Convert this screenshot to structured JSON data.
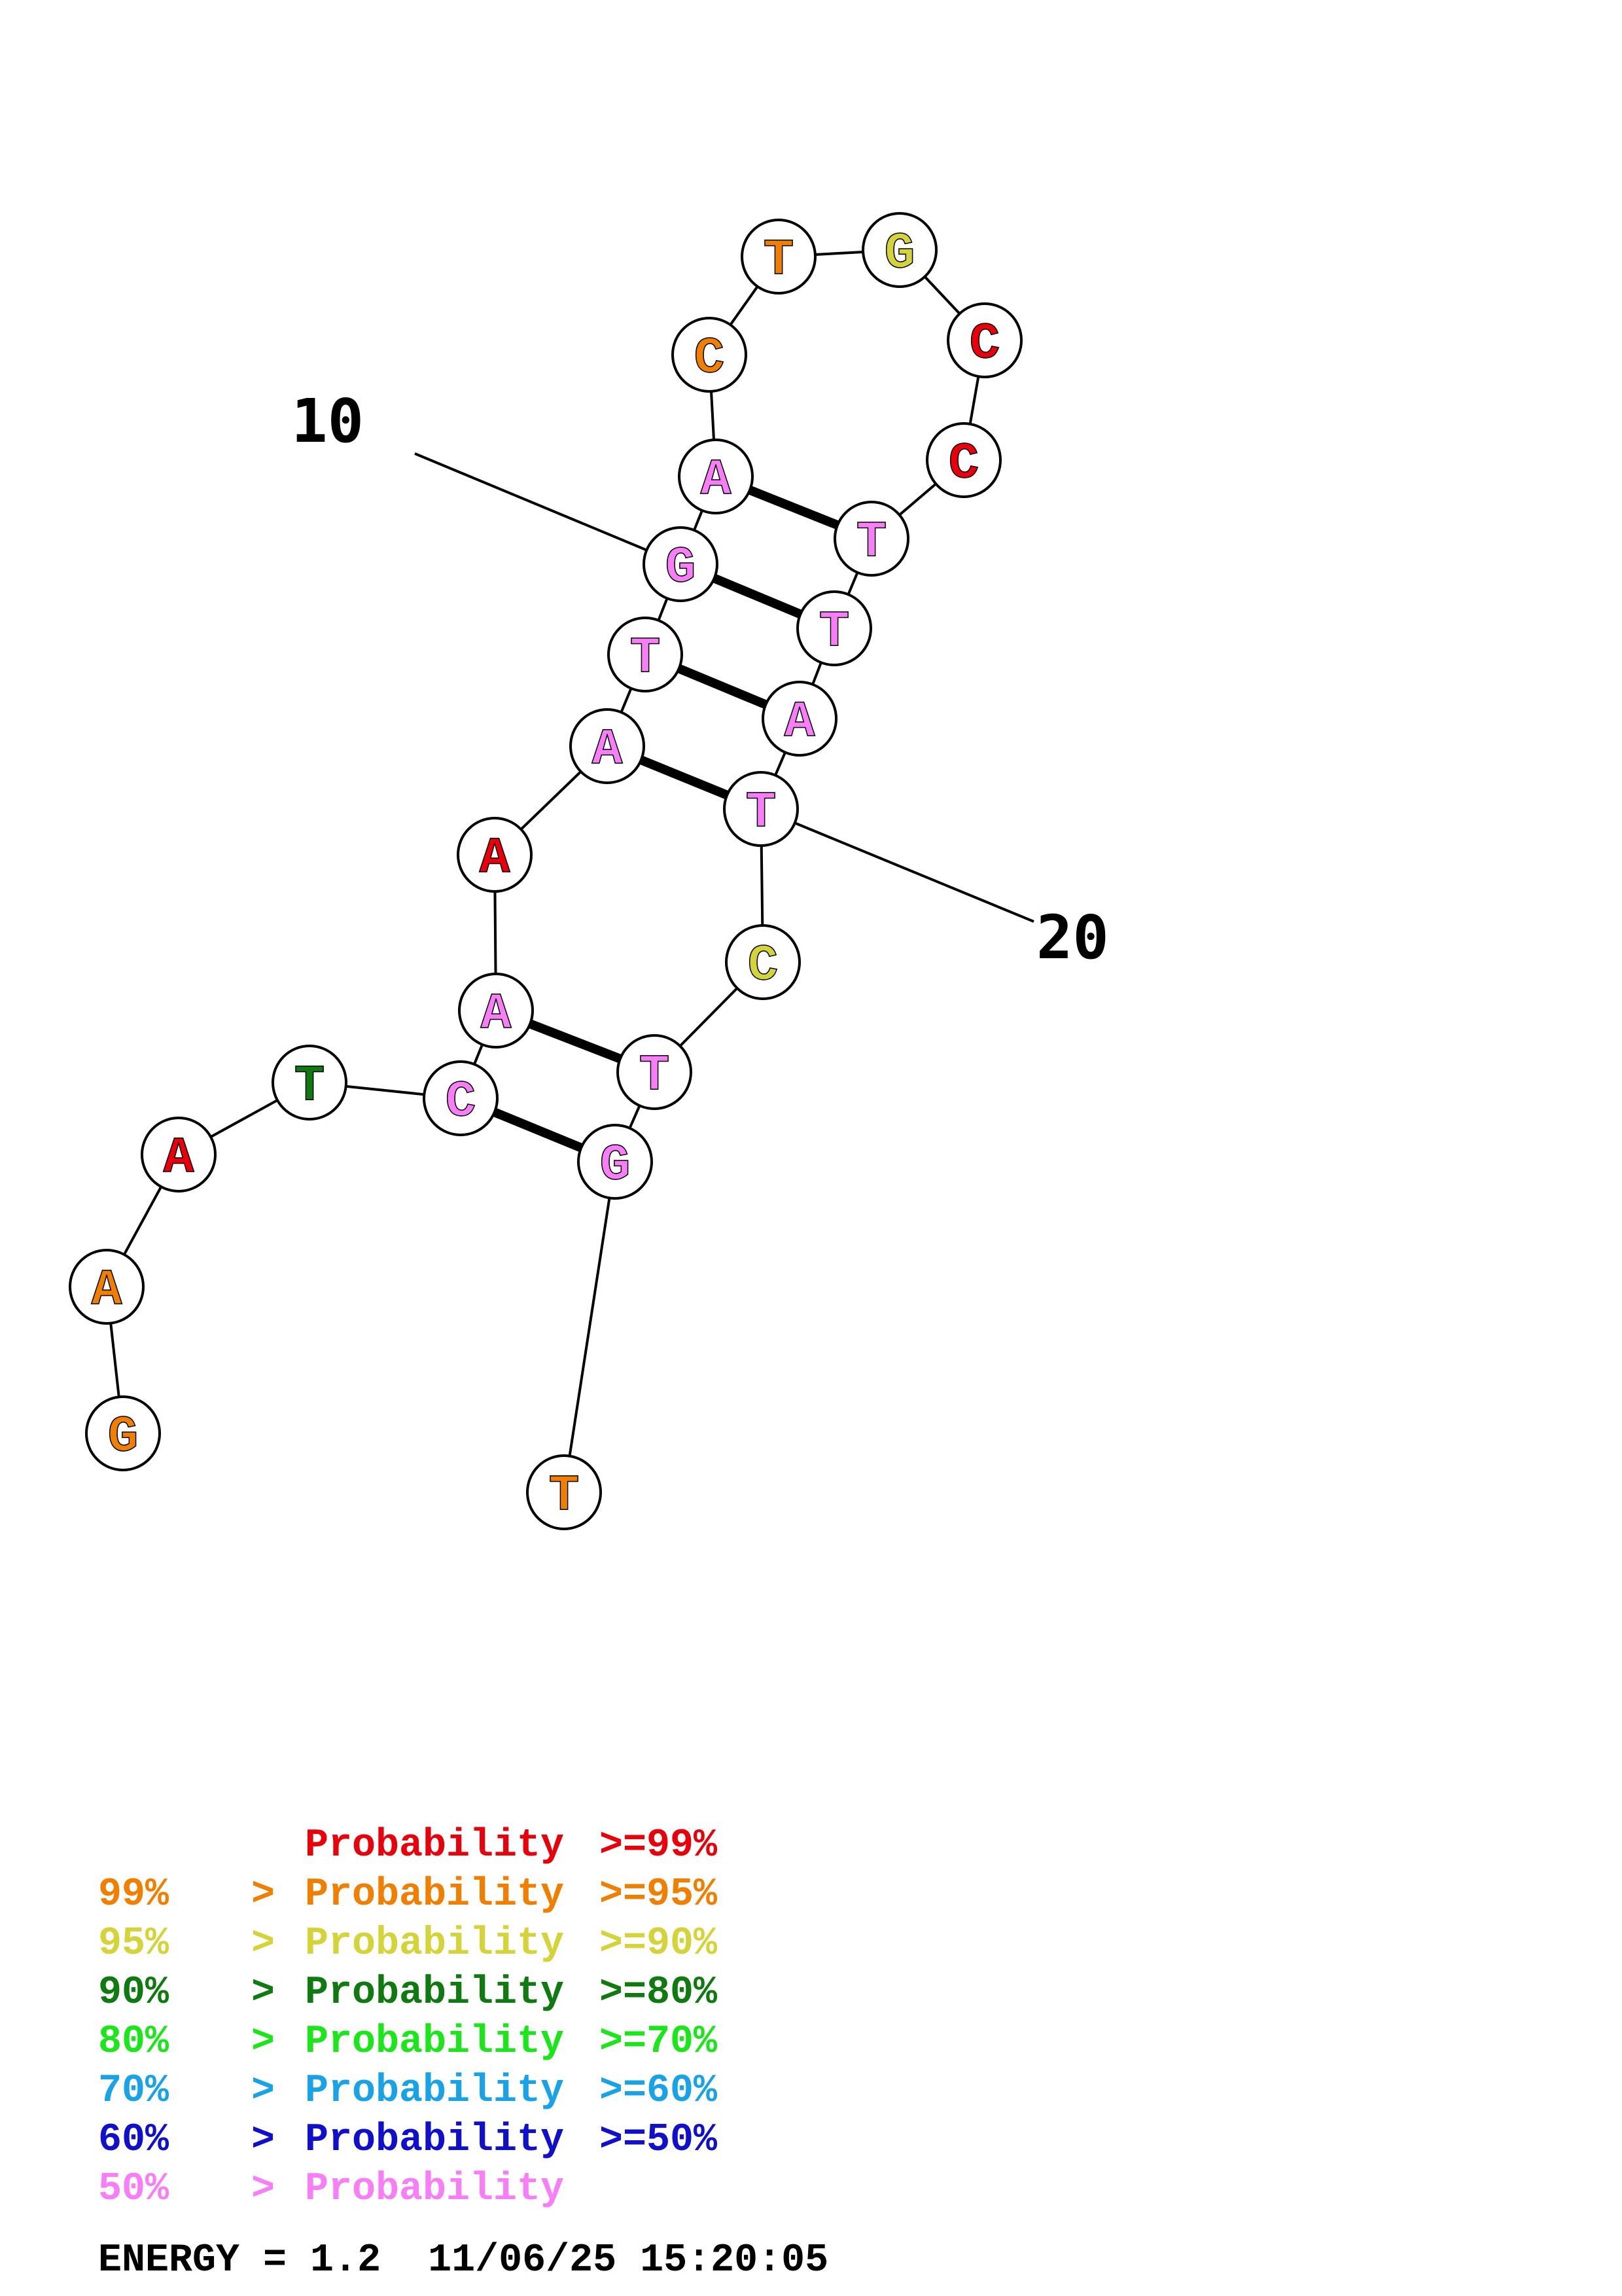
{
  "structure": {
    "nucleotides": [
      {
        "base": "G",
        "prob": "95-99"
      },
      {
        "base": "A",
        "prob": "95-99"
      },
      {
        "base": "A",
        "prob": ">=99"
      },
      {
        "base": "T",
        "prob": "80-90"
      },
      {
        "base": "C",
        "prob": "<50"
      },
      {
        "base": "A",
        "prob": "<50"
      },
      {
        "base": "A",
        "prob": ">=99"
      },
      {
        "base": "A",
        "prob": "<50"
      },
      {
        "base": "T",
        "prob": "<50"
      },
      {
        "base": "G",
        "prob": "<50"
      },
      {
        "base": "A",
        "prob": "<50"
      },
      {
        "base": "C",
        "prob": "95-99"
      },
      {
        "base": "T",
        "prob": "95-99"
      },
      {
        "base": "G",
        "prob": "90-95"
      },
      {
        "base": "C",
        "prob": ">=99"
      },
      {
        "base": "C",
        "prob": ">=99"
      },
      {
        "base": "T",
        "prob": "<50"
      },
      {
        "base": "T",
        "prob": "<50"
      },
      {
        "base": "A",
        "prob": "<50"
      },
      {
        "base": "T",
        "prob": "<50"
      },
      {
        "base": "C",
        "prob": "90-95"
      },
      {
        "base": "T",
        "prob": "<50"
      },
      {
        "base": "G",
        "prob": "<50"
      },
      {
        "base": "T",
        "prob": "95-99"
      }
    ],
    "pairs": [
      [
        5,
        23
      ],
      [
        6,
        22
      ],
      [
        8,
        20
      ],
      [
        9,
        19
      ],
      [
        10,
        18
      ],
      [
        11,
        17
      ]
    ],
    "index_labels": [
      {
        "text": "10",
        "position": 10
      },
      {
        "text": "20",
        "position": 20
      }
    ]
  },
  "colors": {
    ">=99": "#e8000b",
    "95-99": "#f07f00",
    "90-95": "#d4d43a",
    "80-90": "#0f7a0f",
    "70-80": "#1ae61a",
    "60-70": "#19a3e6",
    "50-60": "#1010cc",
    "<50": "#f77ef7"
  },
  "legend": [
    {
      "prefix": "",
      "gt": "",
      "label": "Probability",
      "op": ">=",
      "value": "99%",
      "color": "#e8000b"
    },
    {
      "prefix": "99%",
      "gt": ">",
      "label": "Probability",
      "op": ">=",
      "value": "95%",
      "color": "#f07f00"
    },
    {
      "prefix": "95%",
      "gt": ">",
      "label": "Probability",
      "op": ">=",
      "value": "90%",
      "color": "#d4d43a"
    },
    {
      "prefix": "90%",
      "gt": ">",
      "label": "Probability",
      "op": ">=",
      "value": "80%",
      "color": "#0f7a0f"
    },
    {
      "prefix": "80%",
      "gt": ">",
      "label": "Probability",
      "op": ">=",
      "value": "70%",
      "color": "#1ae61a"
    },
    {
      "prefix": "70%",
      "gt": ">",
      "label": "Probability",
      "op": ">=",
      "value": "60%",
      "color": "#19a3e6"
    },
    {
      "prefix": "60%",
      "gt": ">",
      "label": "Probability",
      "op": ">=",
      "value": "50%",
      "color": "#1010cc"
    },
    {
      "prefix": "50%",
      "gt": ">",
      "label": "Probability",
      "op": "",
      "value": "",
      "color": "#f77ef7"
    }
  ],
  "footer": {
    "energy": "ENERGY = 1.2  11/06/25 15:20:05"
  }
}
